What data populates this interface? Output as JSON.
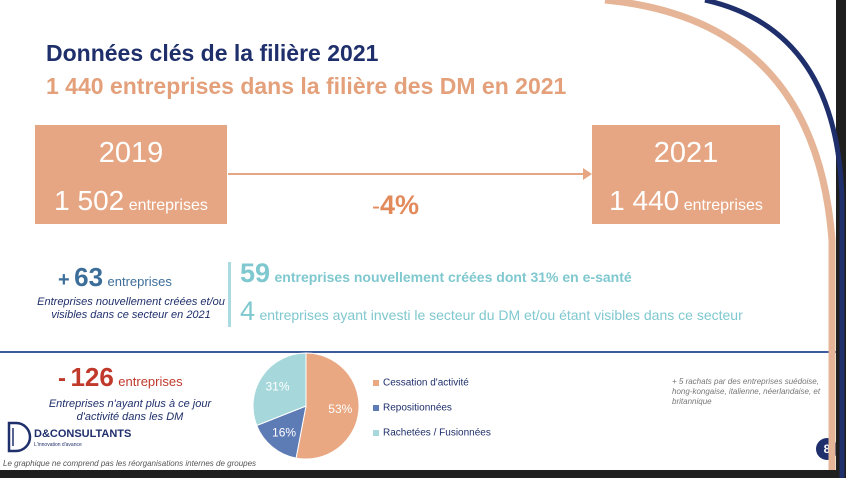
{
  "slide": {
    "title": "Données clés de la filière 2021",
    "subtitle": "1 440 entreprises dans la filière des DM en 2021",
    "box_left": {
      "year": "2019",
      "count": "1 502",
      "unit": "entreprises"
    },
    "box_right": {
      "year": "2021",
      "count": "1 440",
      "unit": "entreprises"
    },
    "change": {
      "sign": "-",
      "value": "4%"
    },
    "gain": {
      "sign": "+",
      "count": "63",
      "unit": "entreprises",
      "description": "Entreprises nouvellement créées et/ou visibles dans ce secteur en 2021"
    },
    "new_companies": {
      "count": "59",
      "text": "entreprises nouvellement créées dont 31% en e-santé"
    },
    "invested": {
      "count": "4",
      "text": "entreprises ayant investi le secteur du DM et/ou étant visibles dans ce secteur"
    },
    "loss": {
      "sign": "-",
      "count": "126",
      "unit": "entreprises",
      "description": "Entreprises n'ayant plus à ce jour d'activité dans les DM"
    },
    "note": "+ 5 rachats par des entreprises suédoise, hong-kongaise, italienne, néerlandaise, et britannique",
    "footnote": "Le graphique ne comprend pas les réorganisations internes de groupes",
    "logo": {
      "name": "D&CONSULTANTS",
      "tagline": "L'innovation d'avance"
    },
    "page_number": "8"
  },
  "colors": {
    "navy": "#1f2f6b",
    "salmon": "#e6a683",
    "teal": "#7fc8cf",
    "red": "#c0392b",
    "blue": "#3d5a99"
  },
  "chart_data": {
    "type": "pie",
    "slices": [
      {
        "label": "Cessation d'activité",
        "value": 53,
        "display": "53%",
        "color": "#e9a882"
      },
      {
        "label": "Repositionnées",
        "value": 16,
        "display": "16%",
        "color": "#5d7bb5"
      },
      {
        "label": "Rachetées / Fusionnées",
        "value": 31,
        "display": "31%",
        "color": "#a6d7db"
      }
    ]
  }
}
